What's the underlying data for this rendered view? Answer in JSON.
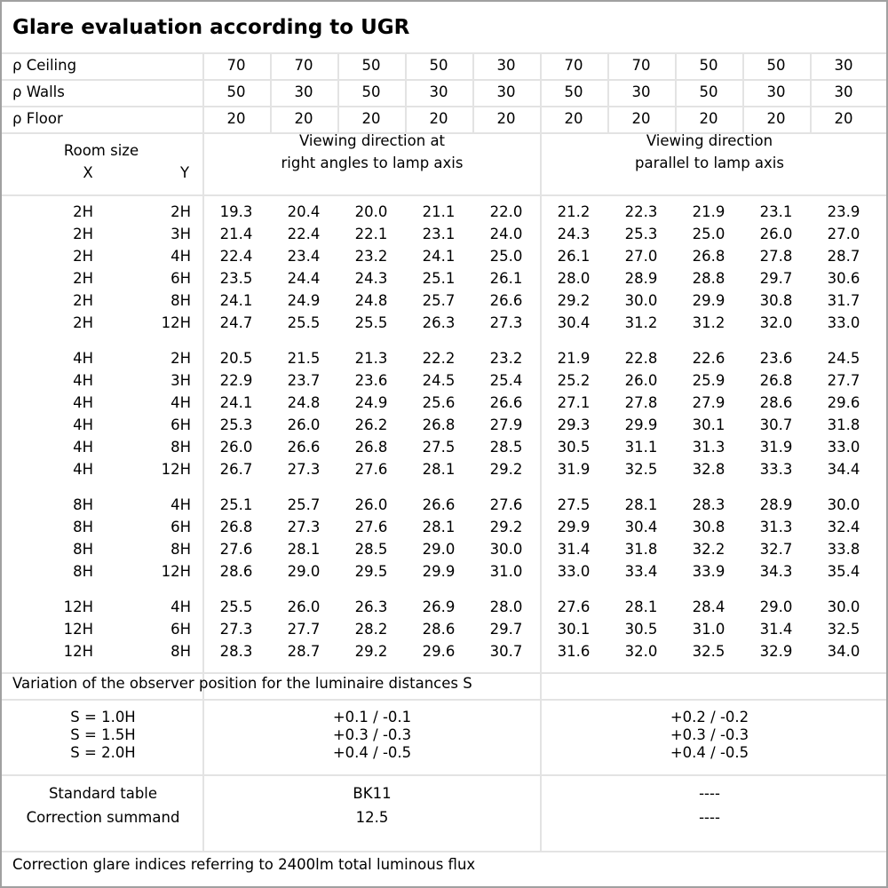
{
  "title": "Glare evaluation according to UGR",
  "reflectances": {
    "rows": [
      {
        "label": "ρ Ceiling",
        "values": [
          "70",
          "70",
          "50",
          "50",
          "30",
          "70",
          "70",
          "50",
          "50",
          "30"
        ]
      },
      {
        "label": "ρ Walls",
        "values": [
          "50",
          "30",
          "50",
          "30",
          "30",
          "50",
          "30",
          "50",
          "30",
          "30"
        ]
      },
      {
        "label": "ρ Floor",
        "values": [
          "20",
          "20",
          "20",
          "20",
          "20",
          "20",
          "20",
          "20",
          "20",
          "20"
        ]
      }
    ]
  },
  "header": {
    "room_size": "Room size",
    "x": "X",
    "y": "Y",
    "direction_right_angles": [
      "Viewing direction at",
      "right angles to lamp axis"
    ],
    "direction_parallel": [
      "Viewing direction",
      "parallel to lamp axis"
    ]
  },
  "groups": [
    {
      "rows": [
        {
          "x": "2H",
          "y": "2H",
          "v": [
            "19.3",
            "20.4",
            "20.0",
            "21.1",
            "22.0",
            "21.2",
            "22.3",
            "21.9",
            "23.1",
            "23.9"
          ]
        },
        {
          "x": "2H",
          "y": "3H",
          "v": [
            "21.4",
            "22.4",
            "22.1",
            "23.1",
            "24.0",
            "24.3",
            "25.3",
            "25.0",
            "26.0",
            "27.0"
          ]
        },
        {
          "x": "2H",
          "y": "4H",
          "v": [
            "22.4",
            "23.4",
            "23.2",
            "24.1",
            "25.0",
            "26.1",
            "27.0",
            "26.8",
            "27.8",
            "28.7"
          ]
        },
        {
          "x": "2H",
          "y": "6H",
          "v": [
            "23.5",
            "24.4",
            "24.3",
            "25.1",
            "26.1",
            "28.0",
            "28.9",
            "28.8",
            "29.7",
            "30.6"
          ]
        },
        {
          "x": "2H",
          "y": "8H",
          "v": [
            "24.1",
            "24.9",
            "24.8",
            "25.7",
            "26.6",
            "29.2",
            "30.0",
            "29.9",
            "30.8",
            "31.7"
          ]
        },
        {
          "x": "2H",
          "y": "12H",
          "v": [
            "24.7",
            "25.5",
            "25.5",
            "26.3",
            "27.3",
            "30.4",
            "31.2",
            "31.2",
            "32.0",
            "33.0"
          ]
        }
      ]
    },
    {
      "rows": [
        {
          "x": "4H",
          "y": "2H",
          "v": [
            "20.5",
            "21.5",
            "21.3",
            "22.2",
            "23.2",
            "21.9",
            "22.8",
            "22.6",
            "23.6",
            "24.5"
          ]
        },
        {
          "x": "4H",
          "y": "3H",
          "v": [
            "22.9",
            "23.7",
            "23.6",
            "24.5",
            "25.4",
            "25.2",
            "26.0",
            "25.9",
            "26.8",
            "27.7"
          ]
        },
        {
          "x": "4H",
          "y": "4H",
          "v": [
            "24.1",
            "24.8",
            "24.9",
            "25.6",
            "26.6",
            "27.1",
            "27.8",
            "27.9",
            "28.6",
            "29.6"
          ]
        },
        {
          "x": "4H",
          "y": "6H",
          "v": [
            "25.3",
            "26.0",
            "26.2",
            "26.8",
            "27.9",
            "29.3",
            "29.9",
            "30.1",
            "30.7",
            "31.8"
          ]
        },
        {
          "x": "4H",
          "y": "8H",
          "v": [
            "26.0",
            "26.6",
            "26.8",
            "27.5",
            "28.5",
            "30.5",
            "31.1",
            "31.3",
            "31.9",
            "33.0"
          ]
        },
        {
          "x": "4H",
          "y": "12H",
          "v": [
            "26.7",
            "27.3",
            "27.6",
            "28.1",
            "29.2",
            "31.9",
            "32.5",
            "32.8",
            "33.3",
            "34.4"
          ]
        }
      ]
    },
    {
      "rows": [
        {
          "x": "8H",
          "y": "4H",
          "v": [
            "25.1",
            "25.7",
            "26.0",
            "26.6",
            "27.6",
            "27.5",
            "28.1",
            "28.3",
            "28.9",
            "30.0"
          ]
        },
        {
          "x": "8H",
          "y": "6H",
          "v": [
            "26.8",
            "27.3",
            "27.6",
            "28.1",
            "29.2",
            "29.9",
            "30.4",
            "30.8",
            "31.3",
            "32.4"
          ]
        },
        {
          "x": "8H",
          "y": "8H",
          "v": [
            "27.6",
            "28.1",
            "28.5",
            "29.0",
            "30.0",
            "31.4",
            "31.8",
            "32.2",
            "32.7",
            "33.8"
          ]
        },
        {
          "x": "8H",
          "y": "12H",
          "v": [
            "28.6",
            "29.0",
            "29.5",
            "29.9",
            "31.0",
            "33.0",
            "33.4",
            "33.9",
            "34.3",
            "35.4"
          ]
        }
      ]
    },
    {
      "rows": [
        {
          "x": "12H",
          "y": "4H",
          "v": [
            "25.5",
            "26.0",
            "26.3",
            "26.9",
            "28.0",
            "27.6",
            "28.1",
            "28.4",
            "29.0",
            "30.0"
          ]
        },
        {
          "x": "12H",
          "y": "6H",
          "v": [
            "27.3",
            "27.7",
            "28.2",
            "28.6",
            "29.7",
            "30.1",
            "30.5",
            "31.0",
            "31.4",
            "32.5"
          ]
        },
        {
          "x": "12H",
          "y": "8H",
          "v": [
            "28.3",
            "28.7",
            "29.2",
            "29.6",
            "30.7",
            "31.6",
            "32.0",
            "32.5",
            "32.9",
            "34.0"
          ]
        }
      ]
    }
  ],
  "variation": {
    "caption": "Variation of the observer position for the luminaire distances S",
    "rows": [
      {
        "s": "S = 1.0H",
        "right_angles": "+0.1 / -0.1",
        "parallel": "+0.2 / -0.2"
      },
      {
        "s": "S = 1.5H",
        "right_angles": "+0.3 / -0.3",
        "parallel": "+0.3 / -0.3"
      },
      {
        "s": "S = 2.0H",
        "right_angles": "+0.4 / -0.5",
        "parallel": "+0.4 / -0.5"
      }
    ]
  },
  "standard": {
    "standard_table_label": "Standard table",
    "correction_label": "Correction summand",
    "right_angles": {
      "table": "BK11",
      "correction": "12.5"
    },
    "parallel": {
      "table": "----",
      "correction": "----"
    }
  },
  "footer": "Correction glare indices referring to 2400lm total luminous flux"
}
